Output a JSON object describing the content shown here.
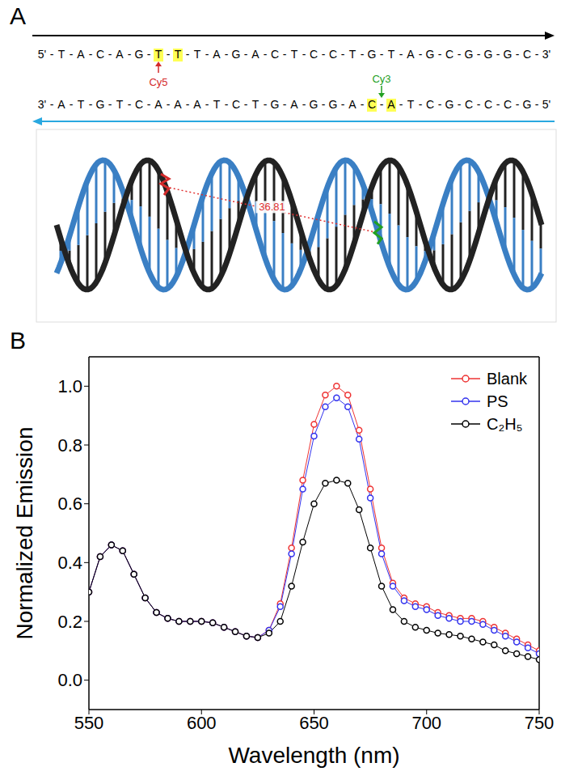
{
  "panel_a": {
    "label": "A",
    "separator": "-",
    "distance": "36.81",
    "distance_color": "#e03030",
    "top_strand": {
      "start": "5'",
      "end": "3'",
      "color": "#000000",
      "bases": [
        {
          "base": "T"
        },
        {
          "base": "A"
        },
        {
          "base": "C"
        },
        {
          "base": "A"
        },
        {
          "base": "G"
        },
        {
          "base": "T",
          "highlight": true,
          "dye": {
            "name": "Cy5",
            "color": "#d42a2a"
          }
        },
        {
          "base": "T",
          "highlight": true
        },
        {
          "base": "T"
        },
        {
          "base": "A"
        },
        {
          "base": "G"
        },
        {
          "base": "A"
        },
        {
          "base": "C"
        },
        {
          "base": "T"
        },
        {
          "base": "C"
        },
        {
          "base": "C"
        },
        {
          "base": "T"
        },
        {
          "base": "G"
        },
        {
          "base": "T"
        },
        {
          "base": "A"
        },
        {
          "base": "G"
        },
        {
          "base": "C"
        },
        {
          "base": "G"
        },
        {
          "base": "G"
        },
        {
          "base": "G"
        },
        {
          "base": "C"
        }
      ]
    },
    "bottom_strand": {
      "start": "3'",
      "end": "5'",
      "color": "#29a8e0",
      "bases": [
        {
          "base": "A"
        },
        {
          "base": "T"
        },
        {
          "base": "G"
        },
        {
          "base": "T"
        },
        {
          "base": "C"
        },
        {
          "base": "A"
        },
        {
          "base": "A"
        },
        {
          "base": "A"
        },
        {
          "base": "T"
        },
        {
          "base": "C"
        },
        {
          "base": "T"
        },
        {
          "base": "G"
        },
        {
          "base": "A"
        },
        {
          "base": "G"
        },
        {
          "base": "G"
        },
        {
          "base": "A"
        },
        {
          "base": "C",
          "highlight": true,
          "dye": {
            "name": "Cy3",
            "color": "#22a022"
          }
        },
        {
          "base": "A",
          "highlight": true
        },
        {
          "base": "T"
        },
        {
          "base": "C"
        },
        {
          "base": "G"
        },
        {
          "base": "C"
        },
        {
          "base": "C"
        },
        {
          "base": "C"
        },
        {
          "base": "G"
        }
      ]
    }
  },
  "chart_data": {
    "panel_label": "B",
    "type": "line",
    "x_label": "Wavelength (nm)",
    "y_label": "Normalized Emission",
    "marker": "open_circle",
    "grid": false,
    "legend": "upper right",
    "xlim": [
      550,
      750
    ],
    "xticks": [
      550,
      600,
      650,
      700,
      750
    ],
    "ylim": [
      -0.1,
      1.1
    ],
    "yticks": [
      {
        "value": 0,
        "label": "0.0"
      },
      {
        "value": 0.2,
        "label": "0.2"
      },
      {
        "value": 0.4,
        "label": "0.4"
      },
      {
        "value": 0.6,
        "label": "0.6"
      },
      {
        "value": 0.8,
        "label": "0.8"
      },
      {
        "value": 1,
        "label": "1.0"
      }
    ],
    "x": [
      550,
      555,
      560,
      565,
      570,
      575,
      580,
      585,
      590,
      595,
      600,
      605,
      610,
      615,
      620,
      625,
      630,
      635,
      640,
      645,
      650,
      655,
      660,
      665,
      670,
      675,
      680,
      685,
      690,
      695,
      700,
      705,
      710,
      715,
      720,
      725,
      730,
      735,
      740,
      745,
      750
    ],
    "series": [
      {
        "name": "Blank",
        "color": "#ee3333",
        "values": [
          0.3,
          0.42,
          0.46,
          0.44,
          0.36,
          0.28,
          0.23,
          0.21,
          0.2,
          0.2,
          0.2,
          0.195,
          0.18,
          0.165,
          0.15,
          0.145,
          0.17,
          0.26,
          0.45,
          0.68,
          0.87,
          0.97,
          1.0,
          0.97,
          0.85,
          0.65,
          0.45,
          0.33,
          0.28,
          0.26,
          0.25,
          0.23,
          0.22,
          0.21,
          0.21,
          0.2,
          0.18,
          0.16,
          0.14,
          0.12,
          0.1
        ]
      },
      {
        "name": "PS",
        "color": "#3333ee",
        "values": [
          0.3,
          0.42,
          0.46,
          0.44,
          0.36,
          0.28,
          0.23,
          0.21,
          0.2,
          0.2,
          0.2,
          0.195,
          0.18,
          0.165,
          0.15,
          0.145,
          0.17,
          0.25,
          0.43,
          0.65,
          0.83,
          0.93,
          0.96,
          0.93,
          0.82,
          0.62,
          0.43,
          0.32,
          0.27,
          0.25,
          0.24,
          0.22,
          0.21,
          0.2,
          0.2,
          0.19,
          0.17,
          0.15,
          0.13,
          0.11,
          0.09
        ]
      },
      {
        "name": "C₂H₅",
        "color": "#000000",
        "values": [
          0.3,
          0.42,
          0.46,
          0.44,
          0.36,
          0.28,
          0.23,
          0.21,
          0.2,
          0.2,
          0.2,
          0.195,
          0.18,
          0.165,
          0.15,
          0.145,
          0.16,
          0.2,
          0.32,
          0.47,
          0.6,
          0.67,
          0.68,
          0.67,
          0.58,
          0.45,
          0.32,
          0.24,
          0.2,
          0.18,
          0.17,
          0.16,
          0.155,
          0.15,
          0.14,
          0.13,
          0.12,
          0.1,
          0.09,
          0.08,
          0.07
        ]
      }
    ]
  }
}
